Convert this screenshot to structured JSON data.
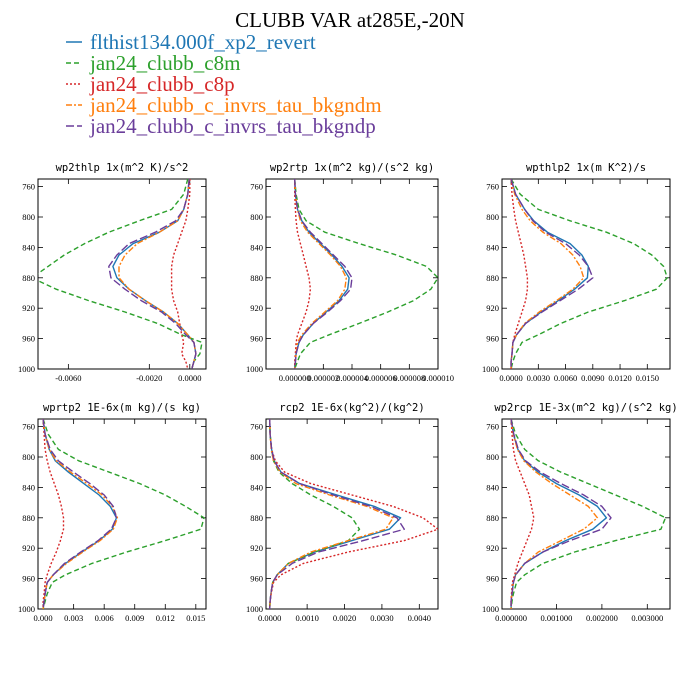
{
  "figure": {
    "title": "CLUBB VAR at285E,-20N",
    "legend": [
      {
        "label": "flthist134.000f_xp2_revert",
        "color": "#1f77b4",
        "dash": "solid"
      },
      {
        "label": "jan24_clubb_c8m",
        "color": "#2ca02c",
        "dash": "dashed"
      },
      {
        "label": "jan24_clubb_c8p",
        "color": "#d62728",
        "dash": "dotted"
      },
      {
        "label": "jan24_clubb_c_invrs_tau_bkgndm",
        "color": "#ff7f0e",
        "dash": "dashdot"
      },
      {
        "label": "jan24_clubb_c_invrs_tau_bkgndp",
        "color": "#6a3d9a",
        "dash": "longdash"
      }
    ]
  },
  "chart_data": [
    {
      "type": "line",
      "title": "wp2thlp  1x(m^2 K)/s^2",
      "ylim": [
        1000,
        750
      ],
      "yticks": [
        760,
        800,
        840,
        880,
        920,
        960,
        1000
      ],
      "xlim": [
        -0.0075,
        0.0008
      ],
      "xticks": [
        -0.006,
        -0.002,
        0.0
      ],
      "xticklabels": [
        "-0.0060",
        "-0.0020",
        "0.0000"
      ],
      "y": [
        750,
        770,
        790,
        805,
        820,
        835,
        850,
        865,
        880,
        895,
        910,
        925,
        940,
        955,
        965,
        980,
        990,
        1000
      ],
      "series": [
        {
          "name": "flthist134.000f_xp2_revert",
          "values": [
            -3e-05,
            -0.0001,
            -0.0003,
            -0.0006,
            -0.0015,
            -0.0028,
            -0.0035,
            -0.0038,
            -0.0036,
            -0.003,
            -0.0022,
            -0.0013,
            -0.0006,
            -0.0001,
            0.0002,
            0.0003,
            0.0002,
            0.0001
          ]
        },
        {
          "name": "jan24_clubb_c8m",
          "values": [
            -0.0001,
            -0.0003,
            -0.0009,
            -0.0025,
            -0.004,
            -0.0052,
            -0.0062,
            -0.007,
            -0.0078,
            -0.0066,
            -0.005,
            -0.0032,
            -0.0016,
            -0.0004,
            0.0006,
            0.0005,
            0.0002,
            0.0001
          ]
        },
        {
          "name": "jan24_clubb_c8p",
          "values": [
            0.0,
            0.0,
            -0.0001,
            -0.0002,
            -0.0004,
            -0.0006,
            -0.0008,
            -0.0009,
            -0.0009,
            -0.0009,
            -0.0008,
            -0.0006,
            -0.0005,
            -0.0004,
            -0.0003,
            -0.0004,
            -0.0002,
            -0.0001
          ]
        },
        {
          "name": "jan24_clubb_c_invrs_tau_bkgndm",
          "values": [
            -3e-05,
            -0.0001,
            -0.0003,
            -0.0006,
            -0.0015,
            -0.0026,
            -0.0032,
            -0.0035,
            -0.0035,
            -0.003,
            -0.0022,
            -0.0013,
            -0.0006,
            -0.0001,
            0.0002,
            0.0003,
            0.0002,
            0.0001
          ]
        },
        {
          "name": "jan24_clubb_c_invrs_tau_bkgndp",
          "values": [
            -3e-05,
            -0.0001,
            -0.0003,
            -0.0007,
            -0.0017,
            -0.003,
            -0.0036,
            -0.004,
            -0.0039,
            -0.0032,
            -0.0024,
            -0.0014,
            -0.0007,
            -0.0002,
            0.0002,
            0.0003,
            0.0002,
            0.0001
          ]
        }
      ]
    },
    {
      "type": "line",
      "title": "wp2rtp  1x(m^2 kg)/(s^2 kg)",
      "ylim": [
        1000,
        750
      ],
      "yticks": [
        760,
        800,
        840,
        880,
        920,
        960,
        1000
      ],
      "xlim": [
        -2e-06,
        1e-05
      ],
      "xticks": [
        0.0,
        2e-06,
        4e-06,
        6e-06,
        8e-06,
        1e-05
      ],
      "xticklabels": [
        "0.000000",
        "0.000002",
        "0.000004",
        "0.000006",
        "0.000008",
        "0.000010"
      ],
      "y": [
        750,
        770,
        790,
        805,
        820,
        835,
        850,
        865,
        880,
        895,
        910,
        925,
        940,
        955,
        965,
        980,
        990,
        1000
      ],
      "series": [
        {
          "name": "flthist134.000f_xp2_revert",
          "values": [
            0.0,
            5e-08,
            2e-07,
            5e-07,
            1e-06,
            1.8e-06,
            2.6e-06,
            3.3e-06,
            3.8e-06,
            3.7e-06,
            3.1e-06,
            2.2e-06,
            1.3e-06,
            6e-07,
            3e-07,
            1e-07,
            5e-08,
            0.0
          ]
        },
        {
          "name": "jan24_clubb_c8m",
          "values": [
            0.0,
            1e-07,
            3e-07,
            8e-07,
            2.1e-06,
            4.5e-06,
            7.1e-06,
            9.2e-06,
            1e-05,
            9.5e-06,
            8.3e-06,
            6.5e-06,
            4.5e-06,
            2.4e-06,
            1.1e-06,
            4e-07,
            2e-07,
            0.0
          ]
        },
        {
          "name": "jan24_clubb_c8p",
          "values": [
            0.0,
            0.0,
            5e-08,
            1e-07,
            2e-07,
            4e-07,
            6e-07,
            8e-07,
            1e-06,
            1.1e-06,
            1e-06,
            8e-07,
            5e-07,
            2e-07,
            1e-07,
            5e-08,
            0.0,
            0.0
          ]
        },
        {
          "name": "jan24_clubb_c_invrs_tau_bkgndm",
          "values": [
            0.0,
            5e-08,
            2e-07,
            4e-07,
            9e-07,
            1.7e-06,
            2.5e-06,
            3.2e-06,
            3.6e-06,
            3.5e-06,
            3e-06,
            2.1e-06,
            1.2e-06,
            5e-07,
            2e-07,
            1e-07,
            5e-08,
            0.0
          ]
        },
        {
          "name": "jan24_clubb_c_invrs_tau_bkgndp",
          "values": [
            0.0,
            5e-08,
            2e-07,
            5e-07,
            1.1e-06,
            1.9e-06,
            2.7e-06,
            3.5e-06,
            4e-06,
            3.9e-06,
            3.2e-06,
            2.3e-06,
            1.3e-06,
            6e-07,
            3e-07,
            1e-07,
            5e-08,
            0.0
          ]
        }
      ]
    },
    {
      "type": "line",
      "title": "wpthlp2  1x(m K^2)/s",
      "ylim": [
        1000,
        750
      ],
      "yticks": [
        760,
        800,
        840,
        880,
        920,
        960,
        1000
      ],
      "xlim": [
        -0.001,
        0.0175
      ],
      "xticks": [
        0.0,
        0.003,
        0.006,
        0.009,
        0.012,
        0.015
      ],
      "xticklabels": [
        "0.0000",
        "0.0030",
        "0.0060",
        "0.0090",
        "0.0120",
        "0.0150"
      ],
      "y": [
        750,
        770,
        790,
        805,
        820,
        835,
        850,
        865,
        880,
        895,
        910,
        925,
        940,
        955,
        965,
        980,
        990,
        1000
      ],
      "series": [
        {
          "name": "flthist134.000f_xp2_revert",
          "values": [
            0.0,
            0.0005,
            0.0015,
            0.0025,
            0.004,
            0.0065,
            0.0078,
            0.0085,
            0.0084,
            0.007,
            0.0052,
            0.0033,
            0.0016,
            0.0006,
            0.0002,
            0.0001,
            0.0,
            0.0
          ]
        },
        {
          "name": "jan24_clubb_c8m",
          "values": [
            0.0,
            0.001,
            0.003,
            0.0065,
            0.0105,
            0.0135,
            0.0155,
            0.0168,
            0.0172,
            0.016,
            0.0125,
            0.0085,
            0.0055,
            0.003,
            0.0012,
            0.0005,
            0.0002,
            0.0
          ]
        },
        {
          "name": "jan24_clubb_c8p",
          "values": [
            0.0,
            0.0001,
            0.0003,
            0.0005,
            0.0008,
            0.0011,
            0.0014,
            0.0016,
            0.0018,
            0.0018,
            0.0016,
            0.0012,
            0.0008,
            0.0004,
            0.0002,
            0.0001,
            0.0,
            0.0
          ]
        },
        {
          "name": "jan24_clubb_c_invrs_tau_bkgndm",
          "values": [
            0.0,
            0.0004,
            0.0012,
            0.0021,
            0.0035,
            0.0055,
            0.0068,
            0.0076,
            0.008,
            0.0068,
            0.005,
            0.0031,
            0.0015,
            0.0006,
            0.0002,
            0.0001,
            0.0,
            0.0
          ]
        },
        {
          "name": "jan24_clubb_c_invrs_tau_bkgndp",
          "values": [
            0.0,
            0.0005,
            0.0015,
            0.0024,
            0.0038,
            0.006,
            0.0075,
            0.0085,
            0.009,
            0.0074,
            0.0054,
            0.0034,
            0.0016,
            0.0006,
            0.0002,
            0.0001,
            0.0,
            0.0
          ]
        }
      ]
    },
    {
      "type": "line",
      "title": "wprtp2  1E-6x(m kg)/(s kg)",
      "ylim": [
        1000,
        750
      ],
      "yticks": [
        760,
        800,
        840,
        880,
        920,
        960,
        1000
      ],
      "xlim": [
        -0.0005,
        0.016
      ],
      "xticks": [
        0.0,
        0.003,
        0.006,
        0.009,
        0.012,
        0.015
      ],
      "xticklabels": [
        "0.000",
        "0.003",
        "0.006",
        "0.009",
        "0.012",
        "0.015"
      ],
      "y": [
        750,
        770,
        790,
        805,
        820,
        835,
        850,
        865,
        880,
        895,
        910,
        925,
        940,
        955,
        965,
        980,
        990,
        1000
      ],
      "series": [
        {
          "name": "flthist134.000f_xp2_revert",
          "values": [
            0.0,
            0.0002,
            0.0006,
            0.0012,
            0.0025,
            0.004,
            0.0055,
            0.0066,
            0.0072,
            0.0068,
            0.0055,
            0.0038,
            0.0022,
            0.001,
            0.0004,
            0.0002,
            0.0001,
            0.0
          ]
        },
        {
          "name": "jan24_clubb_c8m",
          "values": [
            0.0,
            0.0005,
            0.0015,
            0.0035,
            0.0065,
            0.0095,
            0.012,
            0.014,
            0.0158,
            0.0155,
            0.012,
            0.0082,
            0.0048,
            0.0022,
            0.0009,
            0.0004,
            0.0002,
            0.0
          ]
        },
        {
          "name": "jan24_clubb_c8p",
          "values": [
            0.0,
            0.0001,
            0.0002,
            0.0004,
            0.0007,
            0.0011,
            0.0015,
            0.0018,
            0.002,
            0.002,
            0.0017,
            0.0013,
            0.0008,
            0.0004,
            0.0002,
            0.0001,
            0.0,
            0.0
          ]
        },
        {
          "name": "jan24_clubb_c_invrs_tau_bkgndm",
          "values": [
            0.0,
            0.0002,
            0.0006,
            0.0013,
            0.0027,
            0.0043,
            0.0058,
            0.0068,
            0.0073,
            0.0069,
            0.0056,
            0.0039,
            0.0023,
            0.001,
            0.0004,
            0.0002,
            0.0001,
            0.0
          ]
        },
        {
          "name": "jan24_clubb_c_invrs_tau_bkgndp",
          "values": [
            0.0,
            0.0002,
            0.0007,
            0.0015,
            0.003,
            0.0046,
            0.006,
            0.0069,
            0.0072,
            0.0067,
            0.0054,
            0.0037,
            0.0021,
            0.001,
            0.0004,
            0.0002,
            0.0001,
            0.0
          ]
        }
      ]
    },
    {
      "type": "line",
      "title": "rcp2  1E-6x(kg^2)/(kg^2)",
      "ylim": [
        1000,
        750
      ],
      "yticks": [
        760,
        800,
        840,
        880,
        920,
        960,
        1000
      ],
      "xlim": [
        -0.0001,
        0.0045
      ],
      "xticks": [
        0.0,
        0.001,
        0.002,
        0.003,
        0.004
      ],
      "xticklabels": [
        "0.0000",
        "0.0010",
        "0.0020",
        "0.0030",
        "0.0040"
      ],
      "y": [
        750,
        770,
        790,
        805,
        820,
        835,
        850,
        865,
        880,
        895,
        910,
        925,
        940,
        955,
        965,
        980,
        990,
        1000
      ],
      "series": [
        {
          "name": "flthist134.000f_xp2_revert",
          "values": [
            0.0,
            1e-05,
            5e-05,
            0.00012,
            0.0003,
            0.0008,
            0.0018,
            0.0028,
            0.0035,
            0.0032,
            0.0022,
            0.0012,
            0.0005,
            0.0002,
            8e-05,
            3e-05,
            1e-05,
            0.0
          ]
        },
        {
          "name": "jan24_clubb_c8m",
          "values": [
            0.0,
            1e-05,
            5e-05,
            0.0001,
            0.00025,
            0.0006,
            0.0011,
            0.0017,
            0.0022,
            0.0024,
            0.0021,
            0.0012,
            0.0005,
            0.0002,
            8e-05,
            3e-05,
            1e-05,
            0.0
          ]
        },
        {
          "name": "jan24_clubb_c8p",
          "values": [
            0.0,
            1e-05,
            5e-05,
            0.00015,
            0.0004,
            0.0011,
            0.0022,
            0.0033,
            0.0041,
            0.0045,
            0.0036,
            0.0021,
            0.0009,
            0.0003,
            0.0001,
            4e-05,
            1e-05,
            0.0
          ]
        },
        {
          "name": "jan24_clubb_c_invrs_tau_bkgndm",
          "values": [
            0.0,
            1e-05,
            4e-05,
            0.0001,
            0.00028,
            0.0007,
            0.0016,
            0.0026,
            0.0033,
            0.0031,
            0.0021,
            0.0011,
            0.0005,
            0.0002,
            8e-05,
            3e-05,
            1e-05,
            0.0
          ]
        },
        {
          "name": "jan24_clubb_c_invrs_tau_bkgndp",
          "values": [
            0.0,
            1e-05,
            5e-05,
            0.00012,
            0.0003,
            0.0008,
            0.0017,
            0.0027,
            0.0034,
            0.0036,
            0.0025,
            0.0013,
            0.0006,
            0.0002,
            8e-05,
            3e-05,
            1e-05,
            0.0
          ]
        }
      ]
    },
    {
      "type": "line",
      "title": "wp2rcp  1E-3x(m^2 kg)/(s^2 kg)",
      "ylim": [
        1000,
        750
      ],
      "yticks": [
        760,
        800,
        840,
        880,
        920,
        960,
        1000
      ],
      "xlim": [
        -0.0002,
        0.0035
      ],
      "xticks": [
        0.0,
        0.001,
        0.002,
        0.003
      ],
      "xticklabels": [
        "0.000000",
        "0.001000",
        "0.002000",
        "0.003000"
      ],
      "y": [
        750,
        770,
        790,
        805,
        820,
        835,
        850,
        865,
        880,
        895,
        910,
        925,
        940,
        955,
        965,
        980,
        990,
        1000
      ],
      "series": [
        {
          "name": "flthist134.000f_xp2_revert",
          "values": [
            0.0,
            5e-05,
            0.00015,
            0.0003,
            0.0006,
            0.001,
            0.0015,
            0.0019,
            0.0021,
            0.0018,
            0.0012,
            0.0007,
            0.0003,
            0.0001,
            5e-05,
            2e-05,
            0.0,
            0.0
          ]
        },
        {
          "name": "jan24_clubb_c8m",
          "values": [
            0.0,
            0.0001,
            0.0003,
            0.0006,
            0.0011,
            0.0017,
            0.0023,
            0.0029,
            0.0034,
            0.0033,
            0.0023,
            0.0014,
            0.0007,
            0.0003,
            0.00012,
            5e-05,
            2e-05,
            0.0
          ]
        },
        {
          "name": "jan24_clubb_c8p",
          "values": [
            0.0,
            2e-05,
            5e-05,
            0.0001,
            0.0002,
            0.0003,
            0.0004,
            0.00045,
            0.0005,
            0.00045,
            0.00035,
            0.00025,
            0.00015,
            8e-05,
            3e-05,
            1e-05,
            0.0,
            0.0
          ]
        },
        {
          "name": "jan24_clubb_c_invrs_tau_bkgndm",
          "values": [
            0.0,
            5e-05,
            0.00014,
            0.00028,
            0.00055,
            0.0009,
            0.0013,
            0.0017,
            0.0019,
            0.0016,
            0.0011,
            0.0006,
            0.0003,
            0.0001,
            5e-05,
            2e-05,
            0.0,
            0.0
          ]
        },
        {
          "name": "jan24_clubb_c_invrs_tau_bkgndp",
          "values": [
            0.0,
            6e-05,
            0.00016,
            0.00032,
            0.00065,
            0.0011,
            0.0016,
            0.002,
            0.0022,
            0.002,
            0.0013,
            0.0007,
            0.0003,
            0.0001,
            5e-05,
            2e-05,
            0.0,
            0.0
          ]
        }
      ]
    }
  ]
}
